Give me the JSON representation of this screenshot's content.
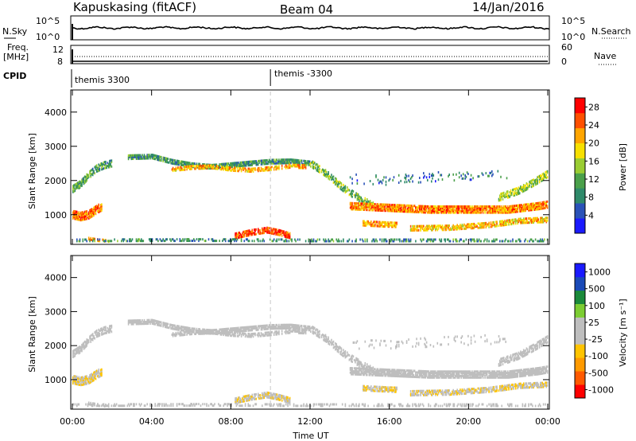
{
  "header": {
    "station": "Kapuskasing (fitACF)",
    "beam": "Beam 04",
    "date": "14/Jan/2016"
  },
  "side_labels": {
    "nsky": "N.Sky",
    "nsearch": "N.Search",
    "freq_line1": "Freq.",
    "freq_line2": "[MHz]",
    "nave": "Nave",
    "cpid": "CPID"
  },
  "noise_axis": {
    "left_ticks": [
      "10^5",
      "10^0"
    ],
    "right_ticks": [
      "10^5",
      "10^0"
    ]
  },
  "freq_axis": {
    "left_ticks": [
      "12",
      "8"
    ],
    "right_ticks": [
      "60",
      "0"
    ]
  },
  "cpid_entries": [
    {
      "label": "themis 3300",
      "start_hour": 0
    },
    {
      "label": "themis -3300",
      "start_hour": 10
    }
  ],
  "time_axis": {
    "xlabel": "Time UT",
    "ticks": [
      "00:00",
      "04:00",
      "08:00",
      "12:00",
      "16:00",
      "20:00",
      "00:00"
    ],
    "tick_hours": [
      0,
      4,
      8,
      12,
      16,
      20,
      24
    ]
  },
  "colors": {
    "power": [
      "#1a1aff",
      "#2a52b8",
      "#2f8a6a",
      "#4aa04a",
      "#9acd32",
      "#f7e000",
      "#ffa500",
      "#ff5000",
      "#ff0000"
    ],
    "velocity": [
      "#ff0000",
      "#ff5a00",
      "#ff9a00",
      "#ffc400",
      "#bebebe",
      "#bebebe",
      "#7ccd32",
      "#1a8a3a",
      "#1a4ab8",
      "#1a1aff"
    ]
  },
  "chart_data": [
    {
      "type": "heatmap",
      "name": "power",
      "ylabel": "Slant Range [km]",
      "yticks": [
        1000,
        2000,
        3000,
        4000
      ],
      "ylim": [
        180,
        4600
      ],
      "xlim": [
        0,
        24
      ],
      "colorbar_label": "Power [dB]",
      "colorbar_ticks": [
        "4",
        "8",
        "12",
        "16",
        "20",
        "24",
        "28"
      ],
      "colorbar_range": [
        0,
        30
      ],
      "bands": [
        {
          "x": [
            0.0,
            0.4,
            0.8,
            1.2,
            1.6,
            2.0
          ],
          "y": [
            1750,
            1900,
            2150,
            2350,
            2450,
            2500
          ],
          "w": 220,
          "v": 11,
          "d": 0.7
        },
        {
          "x": [
            0.0,
            0.4,
            0.8,
            1.2,
            1.5
          ],
          "y": [
            1000,
            950,
            1000,
            1150,
            1250
          ],
          "w": 260,
          "v": 24,
          "d": 0.75
        },
        {
          "x": [
            0.8,
            1.2,
            1.6,
            1.9
          ],
          "y": [
            300,
            260,
            240,
            230
          ],
          "w": 90,
          "v": 22,
          "d": 0.6
        },
        {
          "x": [
            2.8,
            4.0,
            5.0,
            6.0,
            7.0,
            8.0,
            9.0,
            10.0,
            11.0,
            12.0
          ],
          "y": [
            2680,
            2700,
            2550,
            2450,
            2400,
            2450,
            2500,
            2550,
            2560,
            2500
          ],
          "w": 150,
          "v": 10,
          "d": 0.85
        },
        {
          "x": [
            5.0,
            6.0,
            7.0,
            8.0,
            9.0,
            10.0,
            11.0,
            11.8
          ],
          "y": [
            2320,
            2380,
            2400,
            2330,
            2300,
            2350,
            2420,
            2400
          ],
          "w": 120,
          "v": 21,
          "d": 0.6
        },
        {
          "x": [
            12.0,
            12.8,
            13.6,
            14.4,
            15.2
          ],
          "y": [
            2500,
            2200,
            1800,
            1500,
            1250
          ],
          "w": 220,
          "v": 13,
          "d": 0.55
        },
        {
          "x": [
            8.2,
            9.0,
            9.8,
            10.4,
            11.0
          ],
          "y": [
            380,
            480,
            550,
            480,
            380
          ],
          "w": 180,
          "v": 26,
          "d": 0.75
        },
        {
          "x": [
            14.0,
            16.0,
            18.0,
            20.0,
            22.0,
            23.5,
            24.0
          ],
          "y": [
            1250,
            1200,
            1150,
            1150,
            1150,
            1250,
            1300
          ],
          "w": 220,
          "v": 23,
          "d": 0.85
        },
        {
          "x": [
            14.6,
            15.6,
            16.4
          ],
          "y": [
            750,
            720,
            700
          ],
          "w": 160,
          "v": 22,
          "d": 0.6
        },
        {
          "x": [
            17.0,
            19.0,
            21.0,
            22.6,
            24.0
          ],
          "y": [
            600,
            620,
            700,
            820,
            850
          ],
          "w": 160,
          "v": 20,
          "d": 0.65
        },
        {
          "x": [
            21.5,
            22.5,
            23.3,
            24.0
          ],
          "y": [
            1500,
            1700,
            1950,
            2200
          ],
          "w": 220,
          "v": 15,
          "d": 0.6
        },
        {
          "x": [
            14.0,
            16.0,
            18.0,
            20.0,
            22.0
          ],
          "y": [
            2050,
            2000,
            2100,
            2150,
            2200
          ],
          "w": 300,
          "v": 7,
          "d": 0.08
        },
        {
          "x": [
            0.0,
            6.0,
            12.0,
            18.0,
            24.0
          ],
          "y": [
            250,
            260,
            250,
            250,
            250
          ],
          "w": 90,
          "v": 9,
          "d": 0.35
        }
      ]
    },
    {
      "type": "heatmap",
      "name": "velocity",
      "ylabel": "Slant Range [km]",
      "yticks": [
        1000,
        2000,
        3000,
        4000
      ],
      "ylim": [
        180,
        4600
      ],
      "xlim": [
        0,
        24
      ],
      "colorbar_label": "Velocity [m s⁻¹]",
      "colorbar_ticks": [
        "1000",
        "500",
        "100",
        "25",
        "-25",
        "-100",
        "-500",
        "-1000"
      ],
      "colorbar_range": [
        -1200,
        1200
      ],
      "bands": [
        {
          "x": [
            0.0,
            0.4,
            0.8,
            1.2,
            1.6,
            2.0
          ],
          "y": [
            1750,
            1900,
            2150,
            2350,
            2450,
            2500
          ],
          "w": 220,
          "v": 0,
          "d": 0.7
        },
        {
          "x": [
            0.0,
            0.4,
            0.8,
            1.2,
            1.5
          ],
          "y": [
            1000,
            950,
            1000,
            1150,
            1250
          ],
          "w": 260,
          "v": -200,
          "d": 0.75
        },
        {
          "x": [
            0.8,
            1.2,
            1.6,
            1.9
          ],
          "y": [
            300,
            260,
            240,
            230
          ],
          "w": 90,
          "v": 0,
          "d": 0.6
        },
        {
          "x": [
            2.8,
            4.0,
            5.0,
            6.0,
            7.0,
            8.0,
            9.0,
            10.0,
            11.0,
            12.0
          ],
          "y": [
            2680,
            2700,
            2550,
            2450,
            2400,
            2450,
            2500,
            2550,
            2560,
            2500
          ],
          "w": 150,
          "v": 0,
          "d": 0.85
        },
        {
          "x": [
            5.0,
            6.0,
            7.0,
            8.0,
            9.0,
            10.0,
            11.0,
            11.8
          ],
          "y": [
            2320,
            2380,
            2400,
            2330,
            2300,
            2350,
            2420,
            2400
          ],
          "w": 120,
          "v": 0,
          "d": 0.6
        },
        {
          "x": [
            12.0,
            12.8,
            13.6,
            14.4,
            15.2
          ],
          "y": [
            2500,
            2200,
            1800,
            1500,
            1250
          ],
          "w": 220,
          "v": 0,
          "d": 0.55
        },
        {
          "x": [
            8.2,
            9.0,
            9.8,
            10.4,
            11.0
          ],
          "y": [
            380,
            480,
            550,
            480,
            380
          ],
          "w": 180,
          "v": -180,
          "d": 0.75
        },
        {
          "x": [
            14.0,
            16.0,
            18.0,
            20.0,
            22.0,
            23.5,
            24.0
          ],
          "y": [
            1250,
            1200,
            1150,
            1150,
            1150,
            1250,
            1300
          ],
          "w": 220,
          "v": 0,
          "d": 0.85
        },
        {
          "x": [
            14.6,
            15.6,
            16.4
          ],
          "y": [
            750,
            720,
            700
          ],
          "w": 160,
          "v": -200,
          "d": 0.6
        },
        {
          "x": [
            17.0,
            19.0,
            21.0,
            22.6,
            24.0
          ],
          "y": [
            600,
            620,
            700,
            820,
            850
          ],
          "w": 160,
          "v": -200,
          "d": 0.65
        },
        {
          "x": [
            21.5,
            22.5,
            23.3,
            24.0
          ],
          "y": [
            1500,
            1700,
            1950,
            2200
          ],
          "w": 220,
          "v": 0,
          "d": 0.6
        },
        {
          "x": [
            0.0,
            6.0,
            12.0,
            18.0,
            24.0
          ],
          "y": [
            250,
            260,
            250,
            250,
            250
          ],
          "w": 90,
          "v": 60,
          "d": 0.35
        },
        {
          "x": [
            14.0,
            16.0,
            18.0,
            20.0,
            22.0
          ],
          "y": [
            2050,
            2000,
            2100,
            2150,
            2200
          ],
          "w": 300,
          "v": 0,
          "d": 0.08
        }
      ]
    }
  ]
}
